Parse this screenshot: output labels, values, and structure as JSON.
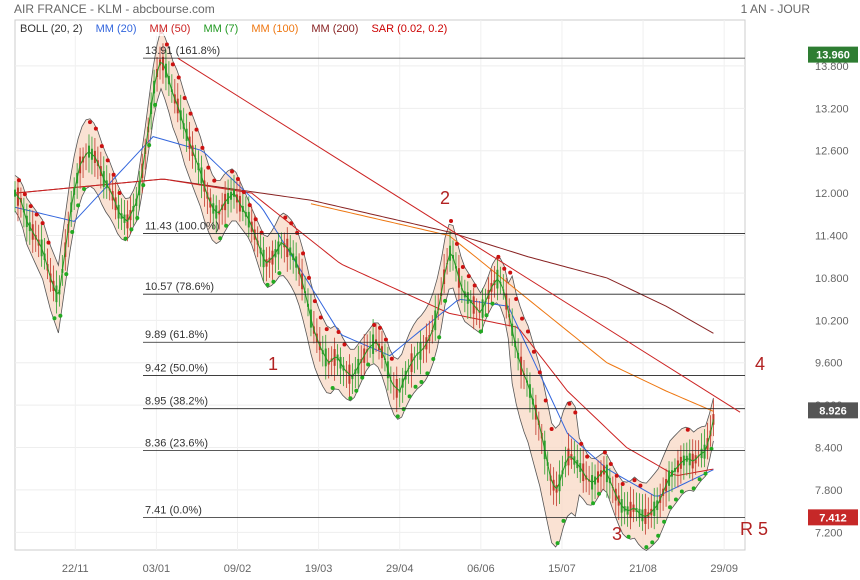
{
  "header": {
    "title": "AIR FRANCE - KLM - abcbourse.com",
    "period": "1 AN - JOUR"
  },
  "legend": [
    {
      "label": "BOLL (20, 2)",
      "color": "#333333"
    },
    {
      "label": "MM (20)",
      "color": "#3366dd"
    },
    {
      "label": "MM (50)",
      "color": "#cc2222"
    },
    {
      "label": "MM (7)",
      "color": "#229922"
    },
    {
      "label": "MM (100)",
      "color": "#ee7711"
    },
    {
      "label": "MM (200)",
      "color": "#882222"
    },
    {
      "label": "SAR (0.02, 0.2)",
      "color": "#cc0000"
    }
  ],
  "badges": {
    "high": {
      "label": "13.960",
      "color": "#2e7d32"
    },
    "last": {
      "label": "8.926",
      "color": "#555555"
    },
    "low": {
      "label": "7.412",
      "color": "#c62828"
    }
  },
  "annotations": [
    "1",
    "2",
    "3",
    "4",
    "R 5"
  ],
  "chart_data": {
    "type": "line",
    "title": "",
    "ylim": [
      6.95,
      14.45
    ],
    "y_ticks": [
      7.2,
      7.8,
      8.4,
      9.0,
      9.6,
      10.2,
      10.8,
      11.4,
      12.0,
      12.6,
      13.2,
      13.8
    ],
    "y_tick_labels": [
      "7.200",
      "7.800",
      "8.400",
      "9.000",
      "9.600",
      "10.200",
      "10.800",
      "11.400",
      "12.000",
      "12.600",
      "13.200",
      "13.800"
    ],
    "x_ticks": [
      "22/11",
      "03/01",
      "09/02",
      "19/03",
      "29/04",
      "06/06",
      "15/07",
      "21/08",
      "29/09"
    ],
    "fibonacci": [
      {
        "value": 13.91,
        "label": "13.91  (161.8%)"
      },
      {
        "value": 11.43,
        "label": "11.43  (100.0%)"
      },
      {
        "value": 10.57,
        "label": "10.57  (78.6%)"
      },
      {
        "value": 9.89,
        "label": "9.89  (61.8%)"
      },
      {
        "value": 9.42,
        "label": "9.42  (50.0%)"
      },
      {
        "value": 8.95,
        "label": "8.95  (38.2%)"
      },
      {
        "value": 8.36,
        "label": "8.36  (23.6%)"
      },
      {
        "value": 7.41,
        "label": "7.41  (0.0%)"
      }
    ],
    "price_trend": [
      [
        0,
        12.0
      ],
      [
        6,
        11.9
      ],
      [
        12,
        11.6
      ],
      [
        20,
        11.4
      ],
      [
        28,
        11.2
      ],
      [
        36,
        10.8
      ],
      [
        44,
        10.5
      ],
      [
        50,
        11.1
      ],
      [
        58,
        11.9
      ],
      [
        66,
        12.4
      ],
      [
        74,
        12.6
      ],
      [
        82,
        12.5
      ],
      [
        90,
        12.2
      ],
      [
        98,
        12.0
      ],
      [
        106,
        11.7
      ],
      [
        114,
        11.6
      ],
      [
        124,
        11.9
      ],
      [
        130,
        12.4
      ],
      [
        136,
        13.0
      ],
      [
        142,
        13.6
      ],
      [
        148,
        13.9
      ],
      [
        154,
        13.7
      ],
      [
        160,
        13.4
      ],
      [
        166,
        13.2
      ],
      [
        172,
        12.9
      ],
      [
        180,
        12.6
      ],
      [
        188,
        12.3
      ],
      [
        194,
        12.0
      ],
      [
        200,
        11.8
      ],
      [
        206,
        11.7
      ],
      [
        214,
        11.9
      ],
      [
        222,
        12.0
      ],
      [
        230,
        11.8
      ],
      [
        238,
        11.6
      ],
      [
        246,
        11.3
      ],
      [
        254,
        11.0
      ],
      [
        262,
        11.1
      ],
      [
        270,
        11.3
      ],
      [
        278,
        11.2
      ],
      [
        286,
        11.0
      ],
      [
        294,
        10.6
      ],
      [
        302,
        10.1
      ],
      [
        310,
        9.8
      ],
      [
        318,
        9.6
      ],
      [
        326,
        9.7
      ],
      [
        334,
        9.5
      ],
      [
        342,
        9.4
      ],
      [
        350,
        9.6
      ],
      [
        358,
        9.8
      ],
      [
        366,
        9.9
      ],
      [
        374,
        9.7
      ],
      [
        382,
        9.3
      ],
      [
        390,
        9.2
      ],
      [
        398,
        9.5
      ],
      [
        406,
        9.7
      ],
      [
        414,
        9.8
      ],
      [
        422,
        10.0
      ],
      [
        430,
        10.4
      ],
      [
        436,
        10.9
      ],
      [
        442,
        11.2
      ],
      [
        448,
        10.9
      ],
      [
        454,
        10.6
      ],
      [
        460,
        10.5
      ],
      [
        466,
        10.4
      ],
      [
        472,
        10.3
      ],
      [
        478,
        10.5
      ],
      [
        484,
        10.7
      ],
      [
        490,
        10.8
      ],
      [
        496,
        10.6
      ],
      [
        502,
        10.2
      ],
      [
        508,
        9.8
      ],
      [
        514,
        9.5
      ],
      [
        520,
        9.3
      ],
      [
        526,
        9.0
      ],
      [
        532,
        8.7
      ],
      [
        538,
        8.3
      ],
      [
        544,
        7.9
      ],
      [
        550,
        7.8
      ],
      [
        556,
        8.1
      ],
      [
        562,
        8.3
      ],
      [
        568,
        8.2
      ],
      [
        574,
        8.1
      ],
      [
        580,
        7.95
      ],
      [
        586,
        7.9
      ],
      [
        592,
        8.0
      ],
      [
        598,
        8.1
      ],
      [
        604,
        7.9
      ],
      [
        610,
        7.7
      ],
      [
        616,
        7.55
      ],
      [
        622,
        7.5
      ],
      [
        628,
        7.55
      ],
      [
        634,
        7.45
      ],
      [
        640,
        7.42
      ],
      [
        646,
        7.5
      ],
      [
        652,
        7.6
      ],
      [
        658,
        7.8
      ],
      [
        664,
        8.0
      ],
      [
        670,
        8.1
      ],
      [
        676,
        8.2
      ],
      [
        682,
        8.25
      ],
      [
        688,
        8.2
      ],
      [
        694,
        8.3
      ],
      [
        700,
        8.35
      ],
      [
        705,
        8.6
      ],
      [
        710,
        8.93
      ]
    ],
    "mm200": [
      [
        0,
        12.0
      ],
      [
        150,
        12.2
      ],
      [
        300,
        11.9
      ],
      [
        440,
        11.45
      ],
      [
        520,
        11.1
      ],
      [
        600,
        10.8
      ],
      [
        660,
        10.4
      ],
      [
        710,
        10.0
      ]
    ],
    "mm100": [
      [
        300,
        11.85
      ],
      [
        440,
        11.4
      ],
      [
        520,
        10.5
      ],
      [
        600,
        9.6
      ],
      [
        660,
        9.2
      ],
      [
        710,
        8.9
      ]
    ],
    "mm50": [
      [
        0,
        12.0
      ],
      [
        150,
        12.2
      ],
      [
        240,
        12.0
      ],
      [
        330,
        11.0
      ],
      [
        440,
        10.3
      ],
      [
        510,
        10.1
      ],
      [
        560,
        9.2
      ],
      [
        620,
        8.4
      ],
      [
        670,
        8.0
      ],
      [
        710,
        8.1
      ]
    ],
    "mm20": [
      [
        0,
        11.8
      ],
      [
        60,
        11.6
      ],
      [
        140,
        12.8
      ],
      [
        190,
        12.6
      ],
      [
        250,
        11.8
      ],
      [
        330,
        10.0
      ],
      [
        380,
        9.7
      ],
      [
        450,
        10.5
      ],
      [
        500,
        10.4
      ],
      [
        560,
        8.6
      ],
      [
        600,
        8.1
      ],
      [
        650,
        7.7
      ],
      [
        710,
        8.1
      ]
    ],
    "trendlines": [
      {
        "from": [
          165,
          13.91
        ],
        "to": [
          735,
          8.9
        ]
      }
    ]
  }
}
